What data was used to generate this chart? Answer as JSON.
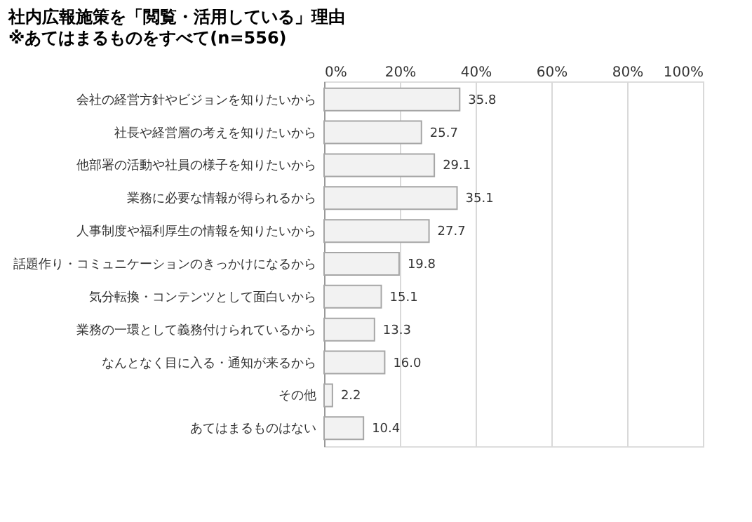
{
  "chart_data": {
    "type": "bar",
    "orientation": "horizontal",
    "title": "社内広報施策を「閲覧・活用している」理由",
    "subtitle": "※あてはまるものをすべて(n=556)",
    "categories": [
      "会社の経営方針やビジョンを知りたいから",
      "社長や経営層の考えを知りたいから",
      "他部署の活動や社員の様子を知りたいから",
      "業務に必要な情報が得られるから",
      "人事制度や福利厚生の情報を知りたいから",
      "話題作り・コミュニケーションのきっかけになるから",
      "気分転換・コンテンツとして面白いから",
      "業務の一環として義務付けられているから",
      "なんとなく目に入る・通知が来るから",
      "その他",
      "あてはまるものはない"
    ],
    "values": [
      35.8,
      25.7,
      29.1,
      35.1,
      27.7,
      19.8,
      15.1,
      13.3,
      16.0,
      2.2,
      10.4
    ],
    "color": "#f2f2f2",
    "xlim": [
      0,
      100
    ],
    "xticks": [
      {
        "value": 0,
        "label": "0%"
      },
      {
        "value": 20,
        "label": "20%"
      },
      {
        "value": 40,
        "label": "40%"
      },
      {
        "value": 60,
        "label": "60%"
      },
      {
        "value": 80,
        "label": "80%"
      },
      {
        "value": 100,
        "label": "100%"
      }
    ],
    "grid": "x",
    "value_labels": [
      "35.8",
      "25.7",
      "29.1",
      "35.1",
      "27.7",
      "19.8",
      "15.1",
      "13.3",
      "16.0",
      "2.2",
      "10.4"
    ]
  }
}
